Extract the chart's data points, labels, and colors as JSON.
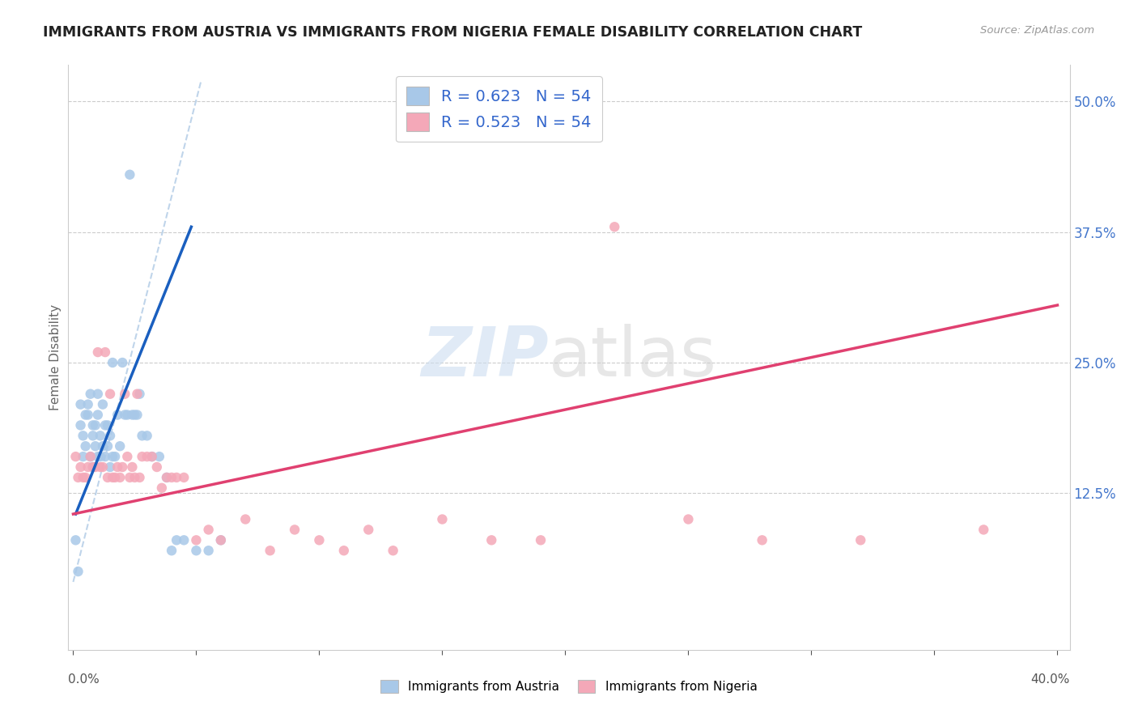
{
  "title": "IMMIGRANTS FROM AUSTRIA VS IMMIGRANTS FROM NIGERIA FEMALE DISABILITY CORRELATION CHART",
  "source": "Source: ZipAtlas.com",
  "ylabel": "Female Disability",
  "ytick_labels": [
    "12.5%",
    "25.0%",
    "37.5%",
    "50.0%"
  ],
  "ytick_values": [
    0.125,
    0.25,
    0.375,
    0.5
  ],
  "xlim": [
    -0.002,
    0.405
  ],
  "ylim": [
    -0.025,
    0.535
  ],
  "legend_austria": "Immigrants from Austria",
  "legend_nigeria": "Immigrants from Nigeria",
  "R_austria": "0.623",
  "N_austria": "54",
  "R_nigeria": "0.523",
  "N_nigeria": "54",
  "austria_color": "#a8c8e8",
  "nigeria_color": "#f4a8b8",
  "austria_line_color": "#1a5fbf",
  "nigeria_line_color": "#e04070",
  "diag_line_color": "#b8d0e8",
  "austria_scatter_x": [
    0.001,
    0.002,
    0.003,
    0.003,
    0.004,
    0.004,
    0.005,
    0.005,
    0.006,
    0.006,
    0.007,
    0.007,
    0.008,
    0.008,
    0.008,
    0.009,
    0.009,
    0.01,
    0.01,
    0.01,
    0.011,
    0.011,
    0.012,
    0.012,
    0.013,
    0.013,
    0.014,
    0.014,
    0.015,
    0.015,
    0.016,
    0.016,
    0.017,
    0.018,
    0.019,
    0.02,
    0.021,
    0.022,
    0.023,
    0.024,
    0.025,
    0.026,
    0.027,
    0.028,
    0.03,
    0.032,
    0.035,
    0.038,
    0.04,
    0.042,
    0.045,
    0.05,
    0.055,
    0.06
  ],
  "austria_scatter_y": [
    0.08,
    0.05,
    0.19,
    0.21,
    0.16,
    0.18,
    0.17,
    0.2,
    0.2,
    0.21,
    0.16,
    0.22,
    0.18,
    0.19,
    0.15,
    0.17,
    0.19,
    0.2,
    0.16,
    0.22,
    0.16,
    0.18,
    0.17,
    0.21,
    0.16,
    0.19,
    0.17,
    0.19,
    0.15,
    0.18,
    0.16,
    0.25,
    0.16,
    0.2,
    0.17,
    0.25,
    0.2,
    0.2,
    0.43,
    0.2,
    0.2,
    0.2,
    0.22,
    0.18,
    0.18,
    0.16,
    0.16,
    0.14,
    0.07,
    0.08,
    0.08,
    0.07,
    0.07,
    0.08
  ],
  "nigeria_scatter_x": [
    0.001,
    0.002,
    0.003,
    0.004,
    0.005,
    0.006,
    0.007,
    0.008,
    0.009,
    0.01,
    0.011,
    0.012,
    0.013,
    0.014,
    0.015,
    0.016,
    0.017,
    0.018,
    0.019,
    0.02,
    0.021,
    0.022,
    0.023,
    0.024,
    0.025,
    0.026,
    0.027,
    0.028,
    0.03,
    0.032,
    0.034,
    0.036,
    0.038,
    0.04,
    0.042,
    0.045,
    0.05,
    0.055,
    0.06,
    0.07,
    0.08,
    0.09,
    0.1,
    0.11,
    0.12,
    0.13,
    0.15,
    0.17,
    0.19,
    0.22,
    0.25,
    0.28,
    0.32,
    0.37
  ],
  "nigeria_scatter_y": [
    0.16,
    0.14,
    0.15,
    0.14,
    0.14,
    0.15,
    0.16,
    0.15,
    0.15,
    0.26,
    0.15,
    0.15,
    0.26,
    0.14,
    0.22,
    0.14,
    0.14,
    0.15,
    0.14,
    0.15,
    0.22,
    0.16,
    0.14,
    0.15,
    0.14,
    0.22,
    0.14,
    0.16,
    0.16,
    0.16,
    0.15,
    0.13,
    0.14,
    0.14,
    0.14,
    0.14,
    0.08,
    0.09,
    0.08,
    0.1,
    0.07,
    0.09,
    0.08,
    0.07,
    0.09,
    0.07,
    0.1,
    0.08,
    0.08,
    0.38,
    0.1,
    0.08,
    0.08,
    0.09
  ],
  "austria_line_x": [
    0.001,
    0.048
  ],
  "austria_line_y": [
    0.105,
    0.38
  ],
  "nigeria_line_x": [
    0.0,
    0.4
  ],
  "nigeria_line_y": [
    0.105,
    0.305
  ],
  "diag_line_x": [
    0.0,
    0.052
  ],
  "diag_line_y": [
    0.04,
    0.52
  ]
}
